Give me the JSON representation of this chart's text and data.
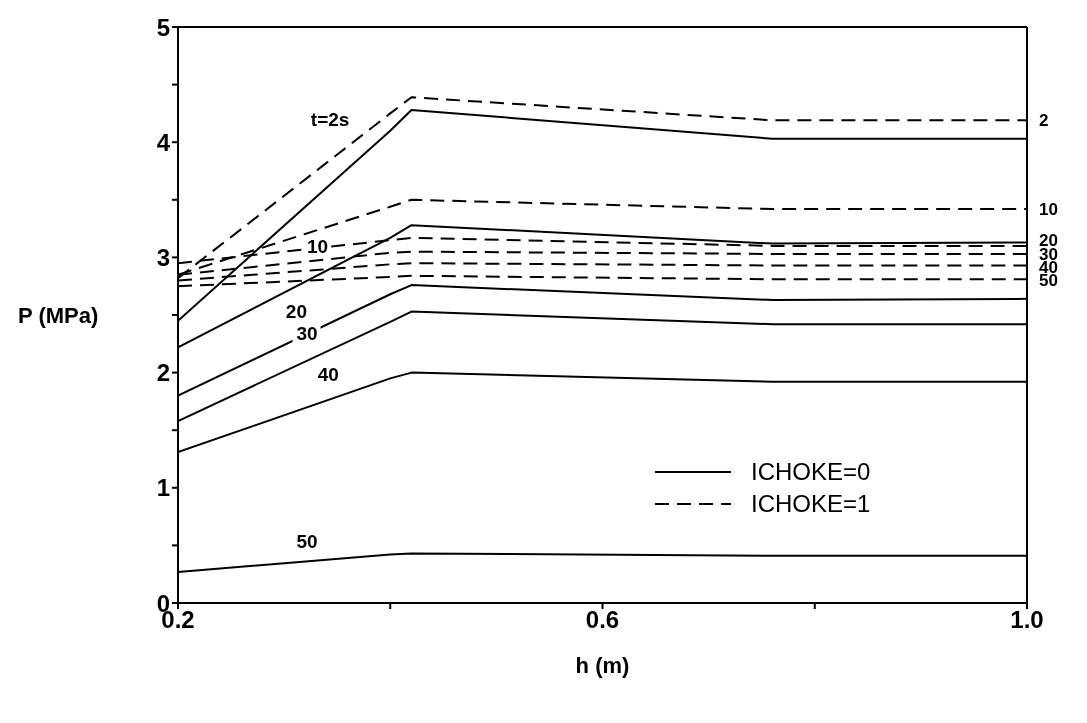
{
  "chart_data": {
    "type": "line",
    "xlabel": "h (m)",
    "ylabel": "P (MPa)",
    "xlim": [
      0.2,
      1.0
    ],
    "xticks": [
      0.2,
      {
        "value": 0.4,
        "label": null
      },
      0.6,
      {
        "value": 0.8,
        "label": null
      },
      {
        "value": 1.0,
        "label": "1.0"
      }
    ],
    "ylim": [
      0,
      5
    ],
    "yticks": [
      0,
      {
        "value": 0.5,
        "label": null
      },
      1,
      {
        "value": 1.5,
        "label": null
      },
      2,
      {
        "value": 2.5,
        "label": null
      },
      3,
      {
        "value": 3.5,
        "label": null
      },
      4,
      {
        "value": 4.5,
        "label": null
      },
      5
    ],
    "x": [
      0.2,
      0.4,
      0.42,
      0.76,
      1.0
    ],
    "series": [
      {
        "name": "ICHOKE=0",
        "color": "#000000",
        "line_style": "solid",
        "values": [
          2.45,
          4.1,
          4.28,
          4.03,
          4.03
        ]
      },
      {
        "color": "#000000",
        "line_style": "solid",
        "values": [
          2.22,
          3.17,
          3.28,
          3.12,
          3.13
        ]
      },
      {
        "color": "#000000",
        "line_style": "solid",
        "values": [
          1.8,
          2.68,
          2.76,
          2.63,
          2.64
        ]
      },
      {
        "color": "#000000",
        "line_style": "solid",
        "values": [
          1.58,
          2.44,
          2.53,
          2.42,
          2.42
        ]
      },
      {
        "color": "#000000",
        "line_style": "solid",
        "values": [
          1.31,
          1.95,
          2.0,
          1.92,
          1.92
        ]
      },
      {
        "color": "#000000",
        "line_style": "solid",
        "values": [
          0.27,
          0.42,
          0.43,
          0.41,
          0.41
        ]
      },
      {
        "name": "ICHOKE=1",
        "color": "#000000",
        "line_style": "dashed",
        "values": [
          2.82,
          4.25,
          4.39,
          4.19,
          4.19
        ]
      },
      {
        "color": "#000000",
        "line_style": "dashed",
        "values": [
          2.85,
          3.44,
          3.5,
          3.42,
          3.42
        ]
      },
      {
        "color": "#000000",
        "line_style": "dashed",
        "values": [
          2.95,
          3.15,
          3.17,
          3.1,
          3.1
        ]
      },
      {
        "color": "#000000",
        "line_style": "dashed",
        "values": [
          2.85,
          3.04,
          3.05,
          3.03,
          3.03
        ]
      },
      {
        "color": "#000000",
        "line_style": "dashed",
        "values": [
          2.8,
          2.94,
          2.95,
          2.93,
          2.93
        ]
      },
      {
        "color": "#000000",
        "line_style": "dashed",
        "values": [
          2.75,
          2.83,
          2.84,
          2.81,
          2.81
        ]
      }
    ],
    "annotations": [
      {
        "text": "t=2s",
        "x": 0.37,
        "y": 4.04
      },
      {
        "text": "10",
        "x": 0.35,
        "y": 2.93
      },
      {
        "text": "20",
        "x": 0.33,
        "y": 2.37
      },
      {
        "text": "30",
        "x": 0.34,
        "y": 2.18
      },
      {
        "text": "40",
        "x": 0.36,
        "y": 1.82
      },
      {
        "text": "50",
        "x": 0.34,
        "y": 0.375
      },
      {
        "text": "2",
        "x": 1.0,
        "y": 4.19
      },
      {
        "text": "10",
        "x": 1.0,
        "y": 3.42
      },
      {
        "text": "20",
        "x": 1.0,
        "y": 3.15
      },
      {
        "text": "30",
        "x": 1.0,
        "y": 3.03
      },
      {
        "text": "40",
        "x": 1.0,
        "y": 2.92
      },
      {
        "text": "50",
        "x": 1.0,
        "y": 2.8
      }
    ],
    "legend": "right",
    "marker": "none"
  }
}
